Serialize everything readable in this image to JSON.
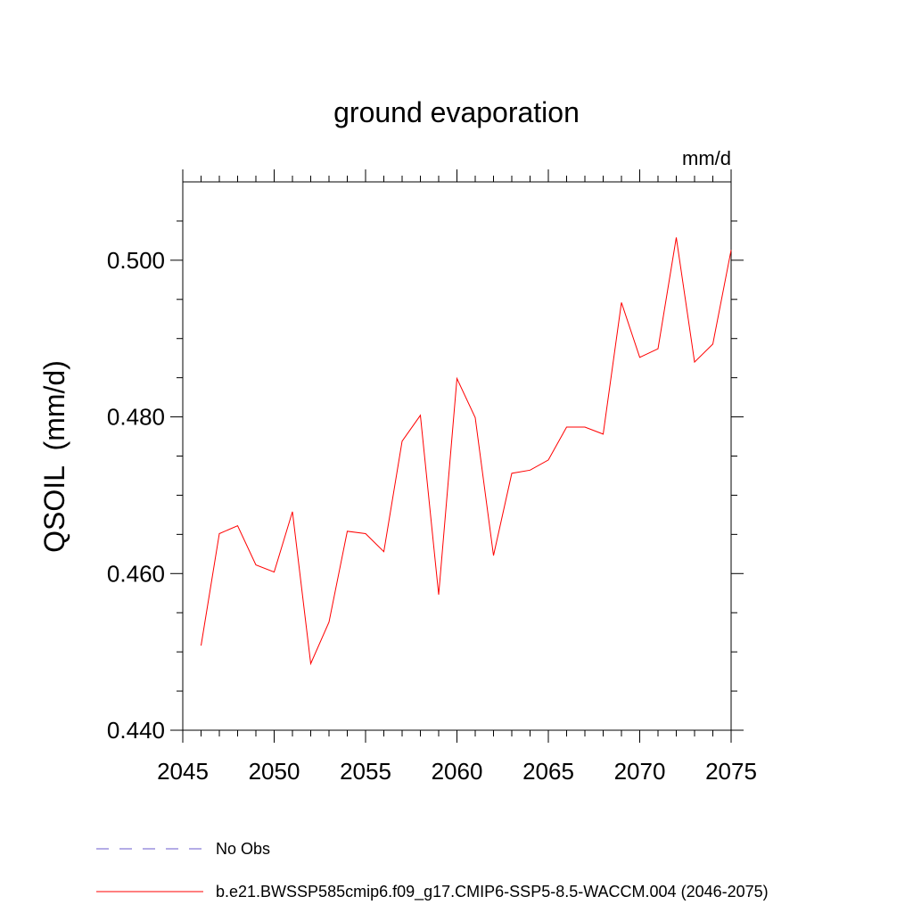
{
  "chart_data": {
    "type": "line",
    "title": "ground evaporation",
    "units": "mm/d",
    "xlabel": "",
    "ylabel": "QSOIL  (mm/d)",
    "xlim": [
      2045,
      2075
    ],
    "ylim": [
      0.44,
      0.51
    ],
    "x_ticks": [
      2045,
      2050,
      2055,
      2060,
      2065,
      2070,
      2075
    ],
    "x_tick_labels": [
      "2045",
      "2050",
      "2055",
      "2060",
      "2065",
      "2070",
      "2075"
    ],
    "x_minor_ticks": [
      2046,
      2047,
      2048,
      2049,
      2051,
      2052,
      2053,
      2054,
      2056,
      2057,
      2058,
      2059,
      2061,
      2062,
      2063,
      2064,
      2066,
      2067,
      2068,
      2069,
      2071,
      2072,
      2073,
      2074
    ],
    "y_ticks": [
      0.44,
      0.46,
      0.48,
      0.5
    ],
    "y_tick_labels": [
      "0.440",
      "0.460",
      "0.480",
      "0.500"
    ],
    "y_minor_ticks": [
      0.445,
      0.45,
      0.455,
      0.465,
      0.47,
      0.475,
      0.485,
      0.49,
      0.495,
      0.505
    ],
    "series": [
      {
        "name": "b.e21.BWSSP585cmip6.f09_g17.CMIP6-SSP5-8.5-WACCM.004 (2046-2075)",
        "color": "#ff0000",
        "style": "solid",
        "x": [
          2046,
          2047,
          2048,
          2049,
          2050,
          2051,
          2052,
          2053,
          2054,
          2055,
          2056,
          2057,
          2058,
          2059,
          2060,
          2061,
          2062,
          2063,
          2064,
          2065,
          2066,
          2067,
          2068,
          2069,
          2070,
          2071,
          2072,
          2073,
          2074,
          2075
        ],
        "values": [
          0.4508,
          0.4651,
          0.4661,
          0.4611,
          0.4602,
          0.4679,
          0.4485,
          0.4538,
          0.4654,
          0.4651,
          0.4628,
          0.4769,
          0.4802,
          0.4573,
          0.4849,
          0.4799,
          0.4623,
          0.4728,
          0.4732,
          0.4745,
          0.4787,
          0.4787,
          0.4778,
          0.4946,
          0.4876,
          0.4887,
          0.5029,
          0.487,
          0.4893,
          0.5013
        ]
      }
    ],
    "legend": [
      {
        "label": "No Obs",
        "color": "#6a5acd",
        "style": "dashed"
      },
      {
        "label": "b.e21.BWSSP585cmip6.f09_g17.CMIP6-SSP5-8.5-WACCM.004 (2046-2075)",
        "color": "#ff0000",
        "style": "solid"
      }
    ],
    "legend_position": "bottom-left",
    "grid": false
  }
}
